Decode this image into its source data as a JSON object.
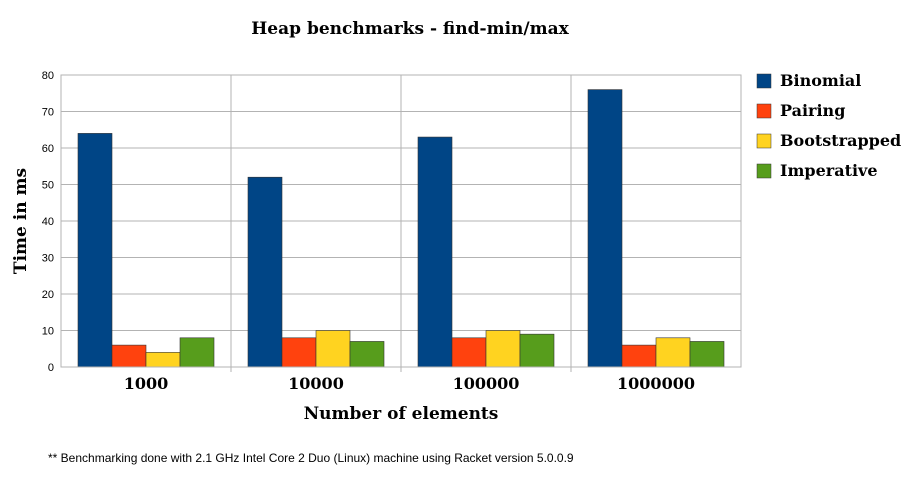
{
  "chart_data": {
    "type": "bar",
    "title": "Heap benchmarks - find-min/max",
    "xlabel": "Number of elements",
    "ylabel": "Time in ms",
    "categories": [
      "1000",
      "10000",
      "100000",
      "1000000"
    ],
    "ylim": [
      0,
      80
    ],
    "yticks": [
      0,
      10,
      20,
      30,
      40,
      50,
      60,
      70,
      80
    ],
    "grid": true,
    "legend_position": "right",
    "series": [
      {
        "name": "Binomial",
        "color": "#004586",
        "values": [
          64,
          52,
          63,
          76
        ]
      },
      {
        "name": "Pairing",
        "color": "#ff420e",
        "values": [
          6,
          8,
          8,
          6
        ]
      },
      {
        "name": "Bootstrapped",
        "color": "#ffd320",
        "values": [
          4,
          10,
          10,
          8
        ]
      },
      {
        "name": "Imperative",
        "color": "#579d1c",
        "values": [
          8,
          7,
          9,
          7
        ]
      }
    ]
  },
  "footnote": "** Benchmarking done with 2.1 GHz Intel Core 2 Duo (Linux) machine using Racket version 5.0.0.9"
}
